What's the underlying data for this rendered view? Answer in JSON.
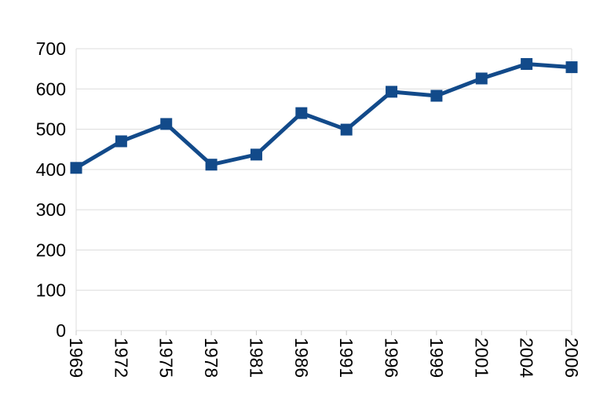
{
  "chart_data": {
    "type": "line",
    "title": "",
    "xlabel": "",
    "ylabel": "",
    "categories": [
      "1969",
      "1972",
      "1975",
      "1978",
      "1981",
      "1986",
      "1991",
      "1996",
      "1999",
      "2001",
      "2004",
      "2006"
    ],
    "series": [
      {
        "name": "series-1",
        "values": [
          404,
          470,
          513,
          412,
          437,
          540,
          499,
          593,
          583,
          626,
          662,
          654
        ]
      }
    ],
    "ylim": [
      0,
      700
    ],
    "y_ticks": [
      0,
      100,
      200,
      300,
      400,
      500,
      600,
      700
    ],
    "grid": "horizontal-plus-edge-verticals",
    "legend": "none",
    "marker": "square",
    "x_label_rotation_deg": 90,
    "colors": {
      "series": "#124a8a",
      "gridline": "#dcdcdc",
      "tick": "#c9c9c9",
      "text": "#000000",
      "background": "#ffffff"
    }
  }
}
